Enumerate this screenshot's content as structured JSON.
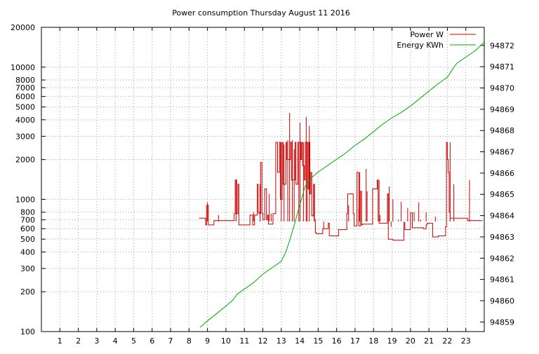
{
  "chart_data": {
    "type": "line",
    "title": "Power consumption Thursday August 11 2016",
    "x_ticks": [
      "1",
      "2",
      "3",
      "4",
      "5",
      "6",
      "7",
      "8",
      "9",
      "10",
      "11",
      "12",
      "13",
      "14",
      "15",
      "16",
      "17",
      "18",
      "19",
      "20",
      "21",
      "22",
      "23"
    ],
    "xlim": [
      0,
      24
    ],
    "y_left": {
      "scale": "log",
      "ylim": [
        100,
        20000
      ],
      "ticks": [
        100,
        200,
        300,
        400,
        500,
        600,
        700,
        800,
        1000,
        2000,
        3000,
        4000,
        5000,
        6000,
        7000,
        8000,
        10000,
        20000
      ],
      "tick_labels": [
        "100",
        "200",
        "300",
        "400",
        "500",
        "600",
        "700",
        "800",
        "1000",
        "2000",
        "3000",
        "4000",
        "5000",
        "6000",
        "7000",
        "8000",
        "10000",
        "20000"
      ]
    },
    "y_right": {
      "scale": "linear",
      "ylim": [
        94858.55,
        94872.85
      ],
      "ticks": [
        94859,
        94860,
        94861,
        94862,
        94863,
        94864,
        94865,
        94866,
        94867,
        94868,
        94869,
        94870,
        94871,
        94872
      ],
      "tick_labels": [
        "94859",
        "94860",
        "94861",
        "94862",
        "94863",
        "94864",
        "94865",
        "94866",
        "94867",
        "94868",
        "94869",
        "94870",
        "94871",
        "94872"
      ]
    },
    "grid": true,
    "legend_position": "top-right",
    "series": [
      {
        "name": "Power W",
        "color": "#cc0000",
        "axis": "left",
        "x": [
          8.55,
          8.85,
          8.9,
          8.95,
          9.05,
          9.3,
          9.35,
          10.4,
          10.45,
          10.5,
          10.58,
          10.65,
          10.7,
          11.15,
          11.3,
          11.45,
          11.55,
          11.7,
          11.75,
          11.8,
          11.88,
          11.95,
          12.0,
          12.1,
          12.2,
          12.25,
          12.3,
          12.55,
          12.65,
          12.7,
          12.8,
          12.9,
          12.95,
          13.05,
          13.1,
          13.25,
          13.3,
          13.5,
          13.55,
          13.75,
          13.8,
          13.9,
          14.05,
          14.1,
          14.15,
          14.25,
          14.3,
          14.45,
          14.5,
          14.55,
          14.6,
          14.65,
          14.72,
          14.75,
          14.8,
          14.85,
          14.9,
          15.2,
          15.25,
          15.5,
          15.55,
          15.6,
          16.0,
          16.1,
          16.5,
          16.55,
          16.6,
          16.9,
          16.95,
          17.1,
          17.2,
          17.3,
          17.35,
          17.4,
          17.9,
          17.95,
          18.2,
          18.25,
          18.3,
          18.7,
          18.75,
          18.8,
          19.0,
          19.05,
          19.6,
          19.65,
          19.7,
          19.95,
          20.0,
          20.1,
          20.3,
          20.35,
          20.7,
          20.85,
          20.9,
          21.2,
          21.3,
          21.5,
          21.9,
          21.95,
          22.0,
          22.05,
          22.1,
          22.15,
          22.3,
          22.6,
          23.0,
          23.1,
          23.3,
          23.4,
          23.9
        ],
        "y": [
          720,
          720,
          640,
          900,
          640,
          640,
          690,
          690,
          780,
          1400,
          780,
          1300,
          640,
          640,
          760,
          640,
          760,
          1300,
          800,
          780,
          1900,
          780,
          700,
          1200,
          700,
          760,
          650,
          780,
          780,
          2700,
          1600,
          2700,
          1000,
          2700,
          1300,
          2700,
          2000,
          2700,
          1400,
          2700,
          1300,
          2700,
          2000,
          2700,
          1800,
          1400,
          2700,
          1200,
          2700,
          1100,
          1600,
          750,
          760,
          1300,
          700,
          560,
          550,
          550,
          600,
          600,
          660,
          530,
          530,
          590,
          590,
          780,
          1100,
          780,
          630,
          1600,
          630,
          1150,
          640,
          650,
          650,
          1200,
          1400,
          690,
          660,
          660,
          1100,
          500,
          500,
          490,
          490,
          670,
          590,
          590,
          790,
          610,
          610,
          610,
          600,
          640,
          660,
          520,
          520,
          530,
          620,
          2700,
          2000,
          1600,
          800,
          720,
          720,
          720,
          720,
          690,
          690,
          690,
          690
        ],
        "spikes": [
          [
            9.0,
            950
          ],
          [
            9.6,
            760
          ],
          [
            10.55,
            1400
          ],
          [
            11.5,
            800
          ],
          [
            11.85,
            1300
          ],
          [
            12.35,
            1100
          ],
          [
            12.45,
            780
          ],
          [
            12.55,
            650
          ],
          [
            13.0,
            2700
          ],
          [
            13.15,
            2600
          ],
          [
            13.35,
            2800
          ],
          [
            13.45,
            4500
          ],
          [
            13.6,
            2800
          ],
          [
            13.7,
            2400
          ],
          [
            13.95,
            2700
          ],
          [
            14.02,
            3800
          ],
          [
            14.2,
            2700
          ],
          [
            14.35,
            4200
          ],
          [
            14.4,
            2700
          ],
          [
            14.52,
            3600
          ],
          [
            14.78,
            1300
          ],
          [
            15.3,
            600
          ],
          [
            16.65,
            900
          ],
          [
            17.2,
            850
          ],
          [
            17.25,
            1600
          ],
          [
            17.6,
            1700
          ],
          [
            17.65,
            1150
          ],
          [
            18.3,
            1400
          ],
          [
            18.35,
            760
          ],
          [
            18.85,
            1250
          ],
          [
            18.95,
            620
          ],
          [
            19.05,
            1000
          ],
          [
            19.35,
            700
          ],
          [
            19.5,
            960
          ],
          [
            19.85,
            860
          ],
          [
            20.2,
            800
          ],
          [
            20.45,
            950
          ],
          [
            20.55,
            700
          ],
          [
            20.85,
            800
          ],
          [
            21.35,
            740
          ],
          [
            22.15,
            2700
          ],
          [
            22.35,
            1300
          ],
          [
            23.2,
            1400
          ]
        ]
      },
      {
        "name": "Energy KWh",
        "color": "#00aa00",
        "axis": "right",
        "x": [
          8.6,
          9.0,
          9.5,
          10.0,
          10.4,
          10.6,
          11.0,
          11.5,
          12.0,
          12.5,
          13.0,
          13.25,
          13.5,
          13.75,
          14.0,
          14.3,
          14.6,
          14.8,
          15.0,
          15.5,
          16.0,
          16.5,
          17.0,
          17.5,
          18.0,
          18.5,
          19.0,
          19.5,
          20.0,
          20.5,
          21.0,
          21.5,
          22.0,
          22.3,
          22.5,
          23.0,
          23.5,
          24.0
        ],
        "y": [
          94858.75,
          94859.05,
          94859.4,
          94859.75,
          94860.05,
          94860.3,
          94860.55,
          94860.85,
          94861.25,
          94861.55,
          94861.85,
          94862.3,
          94862.95,
          94863.7,
          94864.5,
          94865.4,
          94865.75,
          94865.9,
          94866.05,
          94866.35,
          94866.65,
          94866.95,
          94867.3,
          94867.6,
          94867.95,
          94868.3,
          94868.6,
          94868.85,
          94869.15,
          94869.5,
          94869.85,
          94870.2,
          94870.5,
          94870.9,
          94871.15,
          94871.45,
          94871.75,
          94872.15
        ]
      }
    ]
  }
}
